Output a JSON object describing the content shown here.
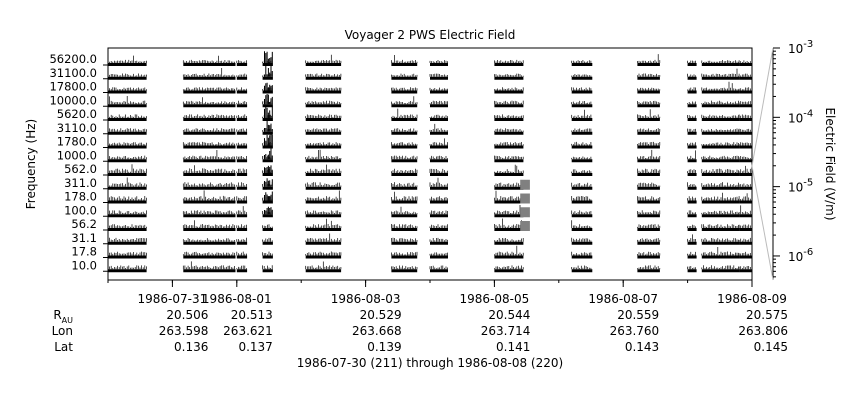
{
  "chart_data": {
    "type": "heatmap",
    "title": "Voyager 2 PWS Electric Field",
    "ylabel": "Frequency (Hz)",
    "colorbar_label": "Electric Field (V/m)",
    "colorbar_scale": "log",
    "colorbar_range": [
      4.5e-07,
      0.001
    ],
    "colorbar_ticks": [
      {
        "base": "10",
        "exp": "-3",
        "value": 0.001
      },
      {
        "base": "10",
        "exp": "-4",
        "value": 0.0001
      },
      {
        "base": "10",
        "exp": "-5",
        "value": 1e-05
      },
      {
        "base": "10",
        "exp": "-6",
        "value": 1e-06
      }
    ],
    "channels": [
      "56200.0",
      "31100.0",
      "17800.0",
      "10000.0",
      "5620.0",
      "3110.0",
      "1780.0",
      "1000.0",
      "562.0",
      "311.0",
      "178.0",
      "100.0",
      "56.2",
      "31.1",
      "17.8",
      "10.0"
    ],
    "x_start": "1986-07-30",
    "x_end": "1986-08-09",
    "x_ticks": [
      "1986-07-31",
      "1986-08-01",
      "1986-08-03",
      "1986-08-05",
      "1986-08-07",
      "1986-08-09"
    ],
    "coverage_days": [
      [
        0.0,
        0.6
      ],
      [
        1.17,
        1.98
      ],
      [
        2.0,
        2.16
      ],
      [
        2.4,
        2.56
      ],
      [
        3.07,
        3.62
      ],
      [
        4.4,
        4.8
      ],
      [
        5.0,
        5.28
      ],
      [
        6.0,
        6.45
      ],
      [
        7.2,
        7.52
      ],
      [
        8.22,
        8.57
      ],
      [
        9.0,
        9.14
      ],
      [
        9.22,
        9.8
      ],
      [
        9.8,
        10.0
      ]
    ],
    "burst_intervals": [
      [
        2.43,
        2.56
      ],
      [
        6.4,
        6.55
      ]
    ],
    "ephemeris": {
      "rows": [
        {
          "label": "R",
          "sub": "AU",
          "values": [
            "20.506",
            "20.513",
            "20.529",
            "20.544",
            "20.559",
            "20.575"
          ]
        },
        {
          "label": "Lon",
          "values": [
            "263.598",
            "263.621",
            "263.668",
            "263.714",
            "263.760",
            "263.806"
          ]
        },
        {
          "label": "Lat",
          "values": [
            "0.136",
            "0.137",
            "0.139",
            "0.141",
            "0.143",
            "0.145"
          ]
        }
      ]
    },
    "footer": "1986-07-30 (211) through 1986-08-08 (220)"
  },
  "colors": {
    "trace": "#000000",
    "burst": "#808080",
    "frame": "#000000",
    "grid": "#bbbbbb"
  }
}
